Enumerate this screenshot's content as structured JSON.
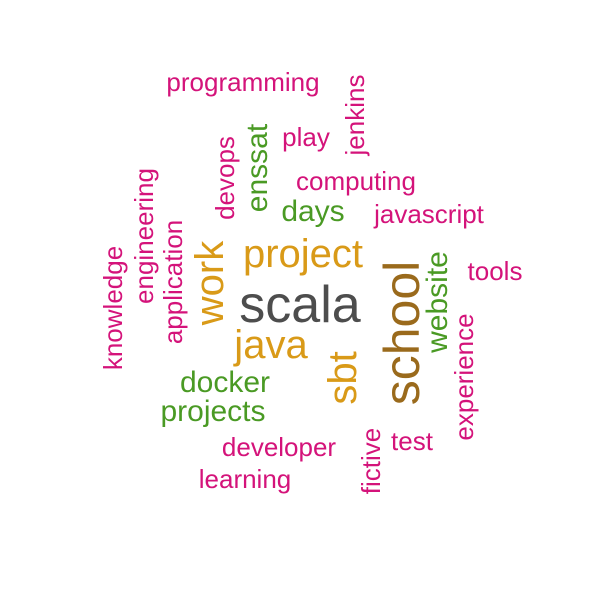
{
  "colors": {
    "gray": "#4d4d4d",
    "brown": "#9a6a1c",
    "gold": "#d99a18",
    "green": "#4a9a24",
    "magenta": "#d4137a"
  },
  "words": [
    {
      "text": "scala",
      "color": "gray"
    },
    {
      "text": "school",
      "color": "brown"
    },
    {
      "text": "project",
      "color": "gold"
    },
    {
      "text": "java",
      "color": "gold"
    },
    {
      "text": "sbt",
      "color": "gold"
    },
    {
      "text": "work",
      "color": "gold"
    },
    {
      "text": "enssat",
      "color": "green"
    },
    {
      "text": "days",
      "color": "green"
    },
    {
      "text": "website",
      "color": "green"
    },
    {
      "text": "docker",
      "color": "green"
    },
    {
      "text": "projects",
      "color": "green"
    },
    {
      "text": "programming",
      "color": "magenta"
    },
    {
      "text": "jenkins",
      "color": "magenta"
    },
    {
      "text": "play",
      "color": "magenta"
    },
    {
      "text": "devops",
      "color": "magenta"
    },
    {
      "text": "computing",
      "color": "magenta"
    },
    {
      "text": "javascript",
      "color": "magenta"
    },
    {
      "text": "engineering",
      "color": "magenta"
    },
    {
      "text": "application",
      "color": "magenta"
    },
    {
      "text": "knowledge",
      "color": "magenta"
    },
    {
      "text": "tools",
      "color": "magenta"
    },
    {
      "text": "experience",
      "color": "magenta"
    },
    {
      "text": "developer",
      "color": "magenta"
    },
    {
      "text": "test",
      "color": "magenta"
    },
    {
      "text": "fictive",
      "color": "magenta"
    },
    {
      "text": "learning",
      "color": "magenta"
    }
  ]
}
